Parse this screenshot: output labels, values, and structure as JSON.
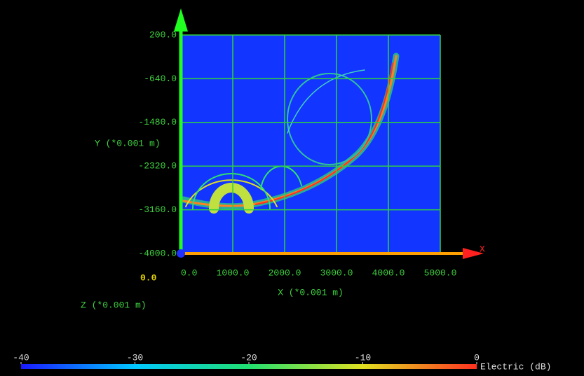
{
  "chart_data": {
    "type": "field",
    "xlabel": "X (*0.001 m)",
    "ylabel": "Y (*0.001 m)",
    "zlabel": "Z (*0.001 m)",
    "z_tick": "0.0",
    "x_axis_letter": "X",
    "xlim": [
      0,
      5000
    ],
    "xticks": [
      {
        "value": 0,
        "label": "0.0"
      },
      {
        "value": 1000,
        "label": "1000.0"
      },
      {
        "value": 2000,
        "label": "2000.0"
      },
      {
        "value": 3000,
        "label": "3000.0"
      },
      {
        "value": 4000,
        "label": "4000.0"
      },
      {
        "value": 5000,
        "label": "5000.0"
      }
    ],
    "ylim": [
      -4000,
      200
    ],
    "yticks": [
      {
        "value": 200,
        "label": "200.0"
      },
      {
        "value": -640,
        "label": "-640.0"
      },
      {
        "value": -1480,
        "label": "-1480.0"
      },
      {
        "value": -2320,
        "label": "-2320.0"
      },
      {
        "value": -3160,
        "label": "-3160.0"
      },
      {
        "value": -4000,
        "label": "-4000.0"
      }
    ],
    "grid": true,
    "background": "#1235ff",
    "grid_color": "#2fd23f",
    "colorbar": {
      "label": "Electric (dB)",
      "lim": [
        -40,
        0
      ],
      "ticks": [
        -40,
        -30,
        -20,
        -10,
        0
      ],
      "colors": [
        "#1a1aff",
        "#00c8ff",
        "#20e070",
        "#e0e020",
        "#ff3020"
      ]
    }
  }
}
